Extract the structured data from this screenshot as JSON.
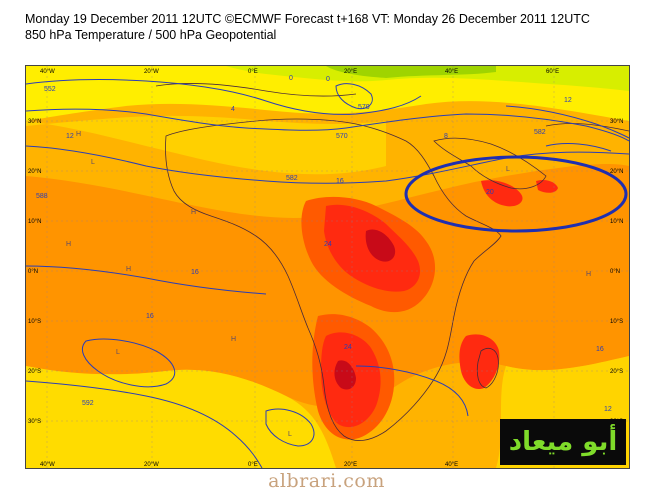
{
  "header": {
    "title_line1": "Monday 19 December 2011 12UTC ©ECMWF Forecast t+168 VT: Monday 26 December 2011 12UTC",
    "title_line2": "850 hPa Temperature / 500 hPa Geopotential"
  },
  "map": {
    "lon_labels": [
      "40°W",
      "20°W",
      "0°E",
      "20°E",
      "40°E",
      "60°E"
    ],
    "lat_labels": [
      "30°N",
      "20°N",
      "10°N",
      "0°N",
      "10°S",
      "20°S",
      "30°S"
    ],
    "contour_values": [
      "552",
      "570",
      "582",
      "588",
      "592",
      "582",
      "570"
    ],
    "temperature_labels": [
      "0",
      "0",
      "4",
      "8",
      "12",
      "12",
      "16",
      "16",
      "16",
      "20",
      "24",
      "24",
      "16",
      "12"
    ],
    "pressure_centres": [
      "H",
      "L"
    ],
    "highlight_color": "#1f2fb0",
    "colors": {
      "cold": "#c8e600",
      "cool": "#ffee00",
      "mild": "#ffc400",
      "warm": "#ff9a00",
      "hot": "#ff6a00",
      "very_hot": "#ff2a10",
      "extreme": "#d4081a",
      "contour": "#2b3eb5"
    }
  },
  "branding": {
    "logo_text": "أبو ميعاد",
    "watermark": "albrari.com"
  }
}
